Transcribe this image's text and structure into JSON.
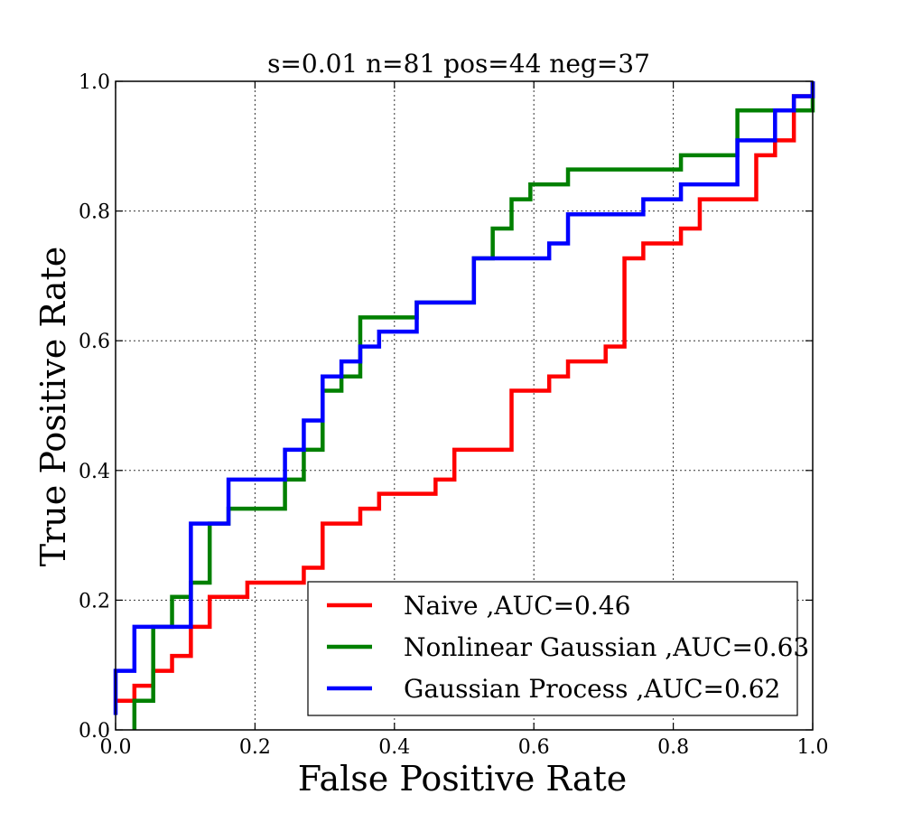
{
  "chart_data": {
    "type": "line",
    "title": "s=0.01 n=81 pos=44 neg=37",
    "xlabel": "False Positive Rate",
    "ylabel": "True Positive Rate",
    "xlim": [
      0,
      1
    ],
    "ylim": [
      0,
      1
    ],
    "xticks": [
      "0.0",
      "0.2",
      "0.4",
      "0.6",
      "0.8",
      "1.0"
    ],
    "yticks": [
      "0.0",
      "0.2",
      "0.4",
      "0.6",
      "0.8",
      "1.0"
    ],
    "grid": true,
    "legend_position": "lower-right",
    "series": [
      {
        "name": "Naive ,AUC=0.46",
        "color": "#ff0000",
        "points": [
          [
            0.0,
            0.045
          ],
          [
            0.027,
            0.045
          ],
          [
            0.027,
            0.068
          ],
          [
            0.054,
            0.068
          ],
          [
            0.054,
            0.091
          ],
          [
            0.081,
            0.091
          ],
          [
            0.081,
            0.114
          ],
          [
            0.108,
            0.114
          ],
          [
            0.108,
            0.159
          ],
          [
            0.135,
            0.159
          ],
          [
            0.135,
            0.205
          ],
          [
            0.189,
            0.205
          ],
          [
            0.189,
            0.227
          ],
          [
            0.27,
            0.227
          ],
          [
            0.27,
            0.25
          ],
          [
            0.297,
            0.25
          ],
          [
            0.297,
            0.318
          ],
          [
            0.351,
            0.318
          ],
          [
            0.351,
            0.341
          ],
          [
            0.378,
            0.341
          ],
          [
            0.378,
            0.364
          ],
          [
            0.459,
            0.364
          ],
          [
            0.459,
            0.386
          ],
          [
            0.486,
            0.386
          ],
          [
            0.486,
            0.432
          ],
          [
            0.568,
            0.432
          ],
          [
            0.568,
            0.523
          ],
          [
            0.622,
            0.523
          ],
          [
            0.622,
            0.545
          ],
          [
            0.649,
            0.545
          ],
          [
            0.649,
            0.568
          ],
          [
            0.703,
            0.568
          ],
          [
            0.703,
            0.591
          ],
          [
            0.73,
            0.591
          ],
          [
            0.73,
            0.727
          ],
          [
            0.757,
            0.727
          ],
          [
            0.757,
            0.75
          ],
          [
            0.811,
            0.75
          ],
          [
            0.811,
            0.773
          ],
          [
            0.838,
            0.773
          ],
          [
            0.838,
            0.818
          ],
          [
            0.919,
            0.818
          ],
          [
            0.919,
            0.886
          ],
          [
            0.946,
            0.886
          ],
          [
            0.946,
            0.909
          ],
          [
            0.973,
            0.909
          ],
          [
            0.973,
            0.977
          ],
          [
            1.0,
            0.977
          ],
          [
            1.0,
            1.0
          ]
        ]
      },
      {
        "name": "Nonlinear Gaussian ,AUC=0.63",
        "color": "#008000",
        "points": [
          [
            0.027,
            0.0
          ],
          [
            0.027,
            0.045
          ],
          [
            0.054,
            0.045
          ],
          [
            0.054,
            0.159
          ],
          [
            0.081,
            0.159
          ],
          [
            0.081,
            0.205
          ],
          [
            0.108,
            0.205
          ],
          [
            0.108,
            0.227
          ],
          [
            0.135,
            0.227
          ],
          [
            0.135,
            0.318
          ],
          [
            0.162,
            0.318
          ],
          [
            0.162,
            0.341
          ],
          [
            0.243,
            0.341
          ],
          [
            0.243,
            0.386
          ],
          [
            0.27,
            0.386
          ],
          [
            0.27,
            0.409
          ],
          [
            0.27,
            0.432
          ],
          [
            0.297,
            0.432
          ],
          [
            0.297,
            0.523
          ],
          [
            0.324,
            0.523
          ],
          [
            0.324,
            0.545
          ],
          [
            0.351,
            0.545
          ],
          [
            0.351,
            0.636
          ],
          [
            0.432,
            0.636
          ],
          [
            0.432,
            0.659
          ],
          [
            0.514,
            0.659
          ],
          [
            0.514,
            0.727
          ],
          [
            0.541,
            0.727
          ],
          [
            0.541,
            0.773
          ],
          [
            0.568,
            0.773
          ],
          [
            0.568,
            0.818
          ],
          [
            0.595,
            0.818
          ],
          [
            0.595,
            0.841
          ],
          [
            0.649,
            0.841
          ],
          [
            0.649,
            0.864
          ],
          [
            0.811,
            0.864
          ],
          [
            0.811,
            0.886
          ],
          [
            0.892,
            0.886
          ],
          [
            0.892,
            0.955
          ],
          [
            1.0,
            0.955
          ],
          [
            1.0,
            1.0
          ]
        ]
      },
      {
        "name": "Gaussian Process ,AUC=0.62",
        "color": "#0000ff",
        "points": [
          [
            0.0,
            0.023
          ],
          [
            0.0,
            0.091
          ],
          [
            0.027,
            0.091
          ],
          [
            0.027,
            0.159
          ],
          [
            0.108,
            0.159
          ],
          [
            0.108,
            0.318
          ],
          [
            0.162,
            0.318
          ],
          [
            0.162,
            0.386
          ],
          [
            0.243,
            0.386
          ],
          [
            0.243,
            0.432
          ],
          [
            0.27,
            0.432
          ],
          [
            0.27,
            0.477
          ],
          [
            0.297,
            0.477
          ],
          [
            0.297,
            0.545
          ],
          [
            0.324,
            0.545
          ],
          [
            0.324,
            0.568
          ],
          [
            0.351,
            0.568
          ],
          [
            0.351,
            0.591
          ],
          [
            0.378,
            0.591
          ],
          [
            0.378,
            0.614
          ],
          [
            0.432,
            0.614
          ],
          [
            0.432,
            0.659
          ],
          [
            0.514,
            0.659
          ],
          [
            0.514,
            0.727
          ],
          [
            0.622,
            0.727
          ],
          [
            0.622,
            0.75
          ],
          [
            0.649,
            0.75
          ],
          [
            0.649,
            0.795
          ],
          [
            0.757,
            0.795
          ],
          [
            0.757,
            0.818
          ],
          [
            0.811,
            0.818
          ],
          [
            0.811,
            0.841
          ],
          [
            0.892,
            0.841
          ],
          [
            0.892,
            0.909
          ],
          [
            0.946,
            0.909
          ],
          [
            0.946,
            0.955
          ],
          [
            0.973,
            0.955
          ],
          [
            0.973,
            0.977
          ],
          [
            1.0,
            0.977
          ],
          [
            1.0,
            1.0
          ]
        ]
      }
    ]
  }
}
